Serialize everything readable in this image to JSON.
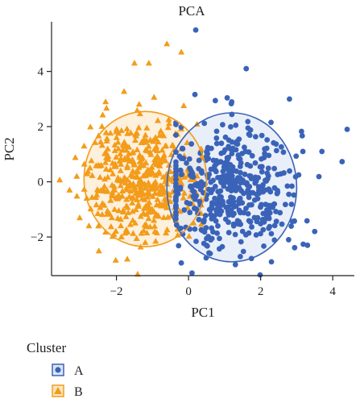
{
  "chart_data": {
    "type": "scatter",
    "title": "PCA",
    "xlabel": "PC1",
    "ylabel": "PC2",
    "xlim": [
      -3.8,
      4.6
    ],
    "ylim": [
      -3.4,
      5.8
    ],
    "xticks": [
      -2,
      0,
      2,
      4
    ],
    "yticks": [
      -2,
      0,
      2,
      4
    ],
    "xtick_labels": [
      "−2",
      "0",
      "2",
      "4"
    ],
    "ytick_labels": [
      "−2",
      "0",
      "2",
      "4"
    ],
    "grid": false,
    "legend": {
      "title": "Cluster",
      "placement": "bottom-left",
      "entries": [
        {
          "label": "A",
          "marker": "circle",
          "color": "#3a63b8"
        },
        {
          "label": "B",
          "marker": "triangle",
          "color": "#f39c1a"
        }
      ]
    },
    "series": [
      {
        "name": "A",
        "marker": "circle",
        "color": "#3a63b8",
        "ellipse": {
          "center": [
            1.2,
            -0.2
          ],
          "width": 3.6,
          "height": 5.4
        },
        "notable_points": [
          [
            0.2,
            5.5
          ],
          [
            1.6,
            4.1
          ],
          [
            4.4,
            1.9
          ],
          [
            3.7,
            1.1
          ],
          [
            3.3,
            -2.3
          ],
          [
            3.5,
            -1.8
          ],
          [
            2.8,
            3.0
          ],
          [
            2.3,
            -2.9
          ],
          [
            1.3,
            -3.0
          ],
          [
            0.6,
            -2.6
          ]
        ]
      },
      {
        "name": "B",
        "marker": "triangle",
        "color": "#f39c1a",
        "ellipse": {
          "center": [
            -1.2,
            0.1
          ],
          "width": 3.4,
          "height": 4.9
        },
        "notable_points": [
          [
            -1.1,
            4.3
          ],
          [
            -0.6,
            5.0
          ],
          [
            -0.2,
            4.7
          ],
          [
            -1.5,
            4.3
          ],
          [
            -2.3,
            2.9
          ],
          [
            -3.3,
            -0.3
          ],
          [
            -3.1,
            0.2
          ],
          [
            -1.7,
            -2.8
          ],
          [
            -1.2,
            -2.2
          ],
          [
            -2.5,
            -1.6
          ]
        ]
      }
    ]
  },
  "colors": {
    "A": "#3a63b8",
    "A_fill": "#dbe5f5",
    "B": "#f39c1a",
    "B_fill": "#fbe6c4"
  }
}
